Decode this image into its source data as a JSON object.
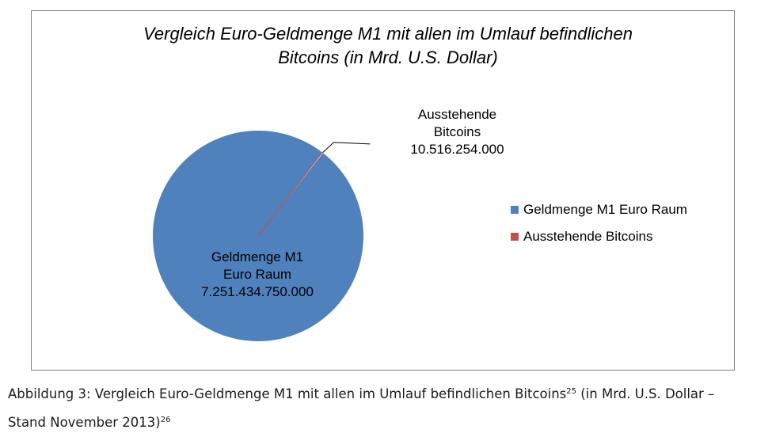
{
  "chart_data": {
    "type": "pie",
    "title_lines": [
      "Vergleich Euro-Geldmenge M1 mit allen im Umlauf befindlichen",
      "Bitcoins (in Mrd. U.S. Dollar)"
    ],
    "slices": [
      {
        "name": "Geldmenge M1 Euro Raum",
        "label_lines": [
          "Geldmenge M1",
          "Euro Raum",
          "7.251.434.750.000"
        ],
        "value": 7251434750000,
        "color": "#4f81bd"
      },
      {
        "name": "Ausstehende Bitcoins",
        "label_lines": [
          "Ausstehende",
          "Bitcoins",
          "10.516.254.000"
        ],
        "value": 10516254000,
        "color": "#c0504d"
      }
    ],
    "legend_position": "right"
  },
  "caption": {
    "line1": "Abbildung 3: Vergleich Euro-Geldmenge M1 mit allen im Umlauf befindlichen Bitcoins",
    "sup1": "25",
    "line1_end": " (in Mrd. U.S. Dollar –",
    "line2": "Stand November 2013)",
    "sup2": "26"
  }
}
